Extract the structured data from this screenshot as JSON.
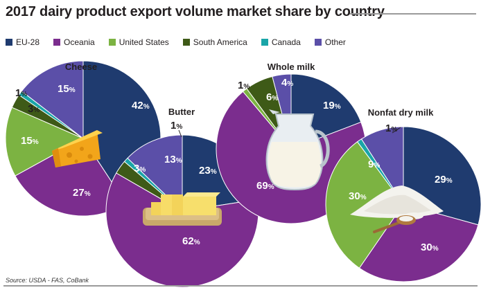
{
  "title": "2017 dairy product export volume market share by country",
  "source": "Source: USDA - FAS, CoBank",
  "legend": [
    {
      "name": "EU-28",
      "color": "#1f3b6f"
    },
    {
      "name": "Oceania",
      "color": "#7b2d8e"
    },
    {
      "name": "United States",
      "color": "#7cb342"
    },
    {
      "name": "South America",
      "color": "#3e5a17"
    },
    {
      "name": "Canada",
      "color": "#1aa5a8"
    },
    {
      "name": "Other",
      "color": "#5b4fa8"
    }
  ],
  "chart_data": [
    {
      "type": "pie",
      "title": "Cheese",
      "categories": [
        "EU-28",
        "Oceania",
        "United States",
        "South America",
        "Canada",
        "Other"
      ],
      "values": [
        42,
        27,
        15,
        3,
        1,
        15
      ],
      "labels": [
        "42%",
        "27%",
        "15%",
        "3%",
        "1%",
        "15%"
      ]
    },
    {
      "type": "pie",
      "title": "Butter",
      "categories": [
        "EU-28",
        "Oceania",
        "United States",
        "South America",
        "Canada",
        "Other"
      ],
      "values": [
        23,
        62,
        0,
        3,
        1,
        13
      ],
      "labels": [
        "23%",
        "62%",
        "",
        "3%",
        "1%",
        "13%"
      ]
    },
    {
      "type": "pie",
      "title": "Whole milk",
      "categories": [
        "EU-28",
        "Oceania",
        "United States",
        "South America",
        "Canada",
        "Other"
      ],
      "values": [
        19,
        69,
        1,
        6,
        0,
        4
      ],
      "labels": [
        "19%",
        "69%",
        "1%",
        "6%",
        "",
        "4%"
      ]
    },
    {
      "type": "pie",
      "title": "Nonfat dry milk",
      "categories": [
        "EU-28",
        "Oceania",
        "United States",
        "South America",
        "Canada",
        "Other"
      ],
      "values": [
        29,
        30,
        30,
        0,
        1,
        9
      ],
      "labels": [
        "29%",
        "30%",
        "30%",
        "",
        "1%",
        "9%"
      ]
    }
  ]
}
